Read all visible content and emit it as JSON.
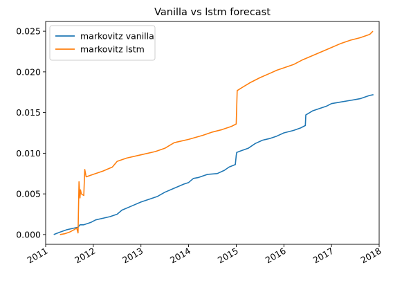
{
  "chart_data": {
    "type": "line",
    "title": "Vanilla vs lstm forecast",
    "xlabel": "",
    "ylabel": "",
    "xlim": [
      2011.0,
      2018.0
    ],
    "ylim": [
      -0.0012,
      0.0262
    ],
    "x_ticks": [
      2011,
      2012,
      2013,
      2014,
      2015,
      2016,
      2017,
      2018
    ],
    "x_tick_labels": [
      "2011",
      "2012",
      "2013",
      "2014",
      "2015",
      "2016",
      "2017",
      "2018"
    ],
    "y_ticks": [
      0.0,
      0.005,
      0.01,
      0.015,
      0.02,
      0.025
    ],
    "y_tick_labels": [
      "0.000",
      "0.005",
      "0.010",
      "0.015",
      "0.020",
      "0.025"
    ],
    "grid": false,
    "legend_position": "top-left",
    "series": [
      {
        "name": "markovitz vanilla",
        "color": "#1f77b4",
        "x": [
          2011.17,
          2011.3,
          2011.45,
          2011.6,
          2011.68,
          2011.72,
          2011.8,
          2011.95,
          2012.05,
          2012.2,
          2012.35,
          2012.5,
          2012.6,
          2012.8,
          2013.0,
          2013.2,
          2013.35,
          2013.5,
          2013.7,
          2013.9,
          2014.0,
          2014.1,
          2014.2,
          2014.4,
          2014.6,
          2014.75,
          2014.85,
          2014.98,
          2015.0,
          2015.01,
          2015.1,
          2015.25,
          2015.4,
          2015.55,
          2015.7,
          2015.85,
          2016.0,
          2016.2,
          2016.35,
          2016.45,
          2016.46,
          2016.6,
          2016.75,
          2016.9,
          2017.0,
          2017.2,
          2017.4,
          2017.6,
          2017.8,
          2017.88
        ],
        "y": [
          0.0,
          0.0003,
          0.0006,
          0.0008,
          0.0009,
          0.0012,
          0.0012,
          0.0015,
          0.0018,
          0.002,
          0.0022,
          0.0025,
          0.003,
          0.0035,
          0.004,
          0.0044,
          0.0047,
          0.0052,
          0.0057,
          0.0062,
          0.0064,
          0.0069,
          0.007,
          0.0074,
          0.0075,
          0.0079,
          0.0083,
          0.0086,
          0.0097,
          0.0101,
          0.0103,
          0.0106,
          0.0112,
          0.0116,
          0.0118,
          0.0121,
          0.0125,
          0.0128,
          0.0131,
          0.0134,
          0.0147,
          0.0152,
          0.0155,
          0.0158,
          0.0161,
          0.0163,
          0.0165,
          0.0167,
          0.0171,
          0.0172
        ]
      },
      {
        "name": "markovitz lstm",
        "color": "#ff7f0e",
        "x": [
          2011.3,
          2011.4,
          2011.5,
          2011.6,
          2011.65,
          2011.68,
          2011.7,
          2011.72,
          2011.73,
          2011.75,
          2011.8,
          2011.82,
          2011.85,
          2012.0,
          2012.2,
          2012.4,
          2012.5,
          2012.7,
          2013.0,
          2013.3,
          2013.5,
          2013.7,
          2014.0,
          2014.3,
          2014.5,
          2014.7,
          2014.9,
          2015.0,
          2015.02,
          2015.1,
          2015.3,
          2015.5,
          2015.7,
          2015.85,
          2016.0,
          2016.2,
          2016.4,
          2016.6,
          2016.8,
          2017.0,
          2017.2,
          2017.4,
          2017.6,
          2017.8,
          2017.87
        ],
        "y": [
          0.0,
          0.0001,
          0.0003,
          0.0006,
          0.0008,
          0.0002,
          0.0065,
          0.0045,
          0.0055,
          0.005,
          0.0048,
          0.008,
          0.0071,
          0.0074,
          0.0078,
          0.0083,
          0.009,
          0.0094,
          0.0098,
          0.0102,
          0.0106,
          0.0113,
          0.0117,
          0.0122,
          0.0126,
          0.0129,
          0.0133,
          0.0136,
          0.0177,
          0.018,
          0.0187,
          0.0193,
          0.0198,
          0.0202,
          0.0205,
          0.0209,
          0.0215,
          0.022,
          0.0225,
          0.023,
          0.0235,
          0.0239,
          0.0242,
          0.0246,
          0.025
        ]
      }
    ]
  }
}
